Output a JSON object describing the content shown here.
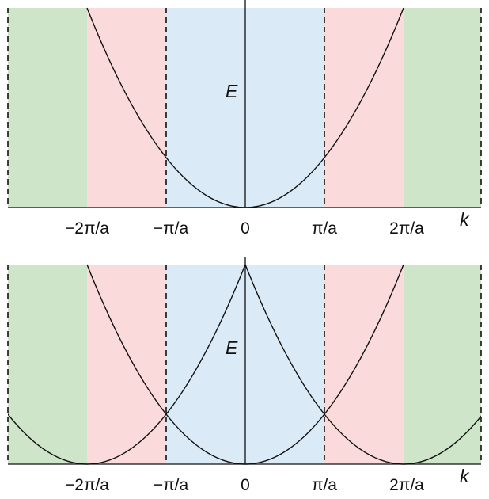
{
  "colors": {
    "first_zone": "#daeaf7",
    "second_zone": "#fadada",
    "third_zone": "#cfe5c9",
    "curve": "#111111",
    "boundary": "#111111"
  },
  "panels": [
    {
      "id": "extended",
      "y_label": "E",
      "x_label": "k",
      "tick_labels": [
        "−2π/a",
        "−π/a",
        "0",
        "π/a",
        "2π/a"
      ],
      "zone_boundaries": [
        "−3π/a",
        "−2π/a",
        "−π/a",
        "π/a",
        "2π/a",
        "3π/a"
      ],
      "curve": "E ∝ k²",
      "scheme": "extended zone"
    },
    {
      "id": "repeated",
      "y_label": "E",
      "x_label": "k",
      "tick_labels": [
        "−2π/a",
        "−π/a",
        "0",
        "π/a",
        "2π/a"
      ],
      "zone_boundaries": [
        "−3π/a",
        "−2π/a",
        "−π/a",
        "π/a",
        "2π/a",
        "3π/a"
      ],
      "curve": "E ∝ (k − G)², G = 0, ±2π/a",
      "scheme": "repeated zone"
    }
  ]
}
